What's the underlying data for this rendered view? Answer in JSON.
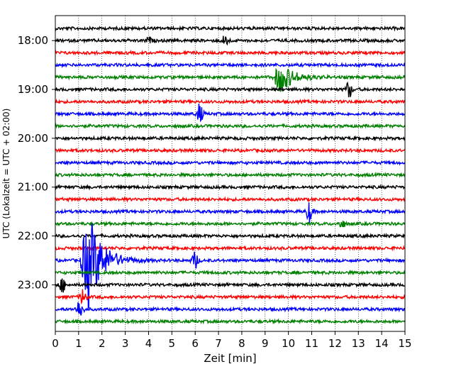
{
  "chart_data": {
    "type": "line",
    "title": "",
    "xlabel": "Zeit  [min]",
    "ylabel": "UTC (Lokalzeit = UTC + 02:00)",
    "xlim": [
      0,
      15
    ],
    "x_ticks": [
      0,
      1,
      2,
      3,
      4,
      5,
      6,
      7,
      8,
      9,
      10,
      11,
      12,
      13,
      14,
      15
    ],
    "ytick_labels": [
      "18:00",
      "19:00",
      "20:00",
      "21:00",
      "22:00",
      "23:00"
    ],
    "trace_interval_min": 15,
    "grid": "vertical dotted",
    "trace_colors": [
      "#000000",
      "#ff0000",
      "#0000ff",
      "#008000"
    ],
    "traces": [
      {
        "start": "17:45",
        "color": "#000000"
      },
      {
        "start": "18:00",
        "color": "#000000",
        "events": [
          {
            "t": 7.3,
            "amp": 9
          },
          {
            "t": 4.0,
            "amp": 4
          }
        ]
      },
      {
        "start": "18:15",
        "color": "#ff0000"
      },
      {
        "start": "18:30",
        "color": "#0000ff"
      },
      {
        "start": "18:45",
        "color": "#008000",
        "events": [
          {
            "t": 9.4,
            "amp": 22
          }
        ]
      },
      {
        "start": "19:00",
        "color": "#000000",
        "events": [
          {
            "t": 12.6,
            "amp": 12
          }
        ]
      },
      {
        "start": "19:15",
        "color": "#ff0000"
      },
      {
        "start": "19:30",
        "color": "#0000ff",
        "events": [
          {
            "t": 6.2,
            "amp": 14
          }
        ]
      },
      {
        "start": "19:45",
        "color": "#008000"
      },
      {
        "start": "20:00",
        "color": "#000000"
      },
      {
        "start": "20:15",
        "color": "#ff0000"
      },
      {
        "start": "20:30",
        "color": "#0000ff"
      },
      {
        "start": "20:45",
        "color": "#008000"
      },
      {
        "start": "21:00",
        "color": "#000000"
      },
      {
        "start": "21:15",
        "color": "#ff0000"
      },
      {
        "start": "21:30",
        "color": "#0000ff",
        "events": [
          {
            "t": 10.9,
            "amp": 15
          }
        ]
      },
      {
        "start": "21:45",
        "color": "#008000",
        "events": [
          {
            "t": 12.3,
            "amp": 6
          }
        ]
      },
      {
        "start": "22:00",
        "color": "#000000"
      },
      {
        "start": "22:15",
        "color": "#ff0000"
      },
      {
        "start": "22:30",
        "color": "#0000ff",
        "events": [
          {
            "t": 1.2,
            "amp": 70
          },
          {
            "t": 6.0,
            "amp": 12
          }
        ]
      },
      {
        "start": "22:45",
        "color": "#008000"
      },
      {
        "start": "23:00",
        "color": "#000000",
        "events": [
          {
            "t": 0.3,
            "amp": 10
          }
        ]
      },
      {
        "start": "23:15",
        "color": "#ff0000",
        "events": [
          {
            "t": 1.2,
            "amp": 12
          }
        ]
      },
      {
        "start": "23:30",
        "color": "#0000ff",
        "events": [
          {
            "t": 1.05,
            "amp": 15
          }
        ]
      },
      {
        "start": "23:45",
        "color": "#008000"
      }
    ]
  }
}
